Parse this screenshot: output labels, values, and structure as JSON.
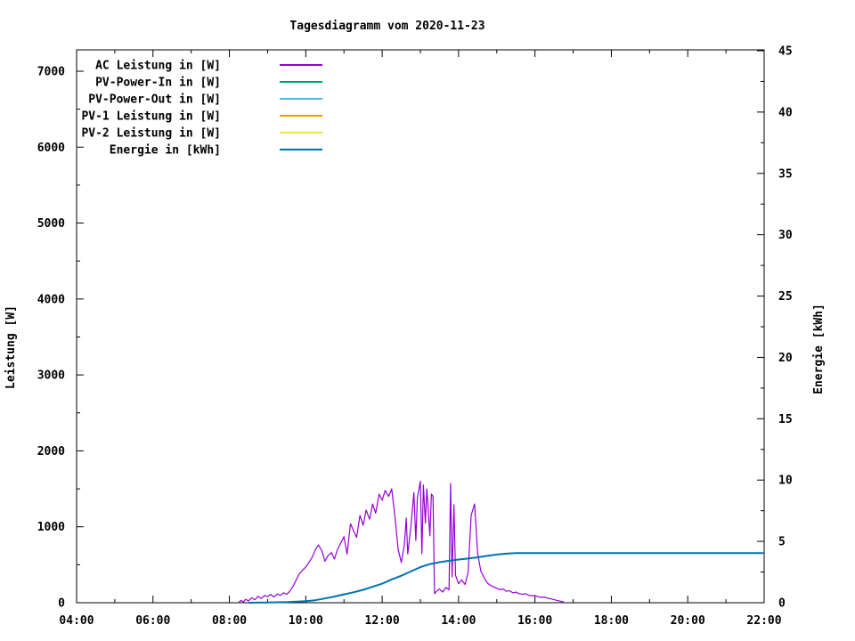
{
  "chart_data": {
    "type": "line",
    "title": "Tagesdiagramm vom 2020-11-23",
    "ylabel": "Leistung [W]",
    "y2label": "Energie [kWh]",
    "background_color": "#ffffff",
    "border_color": "#000000",
    "text_color": "#000000",
    "grid": false,
    "legend_position": "top-left-inside",
    "x_axis": {
      "min_hour": 4,
      "max_hour": 22,
      "major_step_hours": 2,
      "minor_step_hours": 1,
      "tick_hours": [
        4,
        6,
        8,
        10,
        12,
        14,
        16,
        18,
        20,
        22
      ],
      "tick_labels": [
        "04:00",
        "06:00",
        "08:00",
        "10:00",
        "12:00",
        "14:00",
        "16:00",
        "18:00",
        "20:00",
        "22:00"
      ]
    },
    "y_axis": {
      "label": "Leistung [W]",
      "min": 0,
      "max": 7000,
      "major_step": 1000,
      "minor_step": 500,
      "tick_labels": [
        "0",
        "1000",
        "2000",
        "3000",
        "4000",
        "5000",
        "6000",
        "7000"
      ]
    },
    "y2_axis": {
      "label": "Energie [kWh]",
      "min": 0,
      "max": 45,
      "major_step": 5,
      "minor_step": 2.5,
      "tick_labels": [
        "0",
        "5",
        "10",
        "15",
        "20",
        "25",
        "30",
        "35",
        "40",
        "45"
      ]
    },
    "legend": [
      {
        "label": "AC Leistung in [W]",
        "color": "#9400d3"
      },
      {
        "label": "PV-Power-In in [W]",
        "color": "#009e73"
      },
      {
        "label": "PV-Power-Out in [W]",
        "color": "#56b4e9"
      },
      {
        "label": "PV-1 Leistung in [W]",
        "color": "#e69f00"
      },
      {
        "label": "PV-2 Leistung in [W]",
        "color": "#f0e442"
      },
      {
        "label": "Energie in [kWh]",
        "color": "#0072b2"
      }
    ],
    "series": [
      {
        "name": "AC Leistung in [W]",
        "key": "ac-leistung",
        "color": "#9400d3",
        "axis": "y1",
        "stroke_width": 1.2,
        "points": [
          [
            8.25,
            5
          ],
          [
            8.3,
            30
          ],
          [
            8.37,
            12
          ],
          [
            8.42,
            45
          ],
          [
            8.5,
            25
          ],
          [
            8.58,
            65
          ],
          [
            8.67,
            40
          ],
          [
            8.75,
            85
          ],
          [
            8.83,
            55
          ],
          [
            8.92,
            95
          ],
          [
            9.0,
            80
          ],
          [
            9.08,
            110
          ],
          [
            9.17,
            75
          ],
          [
            9.25,
            115
          ],
          [
            9.33,
            95
          ],
          [
            9.42,
            130
          ],
          [
            9.5,
            110
          ],
          [
            9.58,
            150
          ],
          [
            9.67,
            220
          ],
          [
            9.75,
            300
          ],
          [
            9.83,
            380
          ],
          [
            9.92,
            430
          ],
          [
            10.0,
            470
          ],
          [
            10.08,
            530
          ],
          [
            10.17,
            600
          ],
          [
            10.25,
            700
          ],
          [
            10.33,
            760
          ],
          [
            10.42,
            690
          ],
          [
            10.5,
            545
          ],
          [
            10.58,
            620
          ],
          [
            10.67,
            660
          ],
          [
            10.75,
            575
          ],
          [
            10.83,
            700
          ],
          [
            10.92,
            790
          ],
          [
            11.0,
            870
          ],
          [
            11.08,
            640
          ],
          [
            11.17,
            1040
          ],
          [
            11.25,
            950
          ],
          [
            11.33,
            860
          ],
          [
            11.42,
            1150
          ],
          [
            11.5,
            1020
          ],
          [
            11.58,
            1220
          ],
          [
            11.67,
            1100
          ],
          [
            11.75,
            1300
          ],
          [
            11.83,
            1180
          ],
          [
            11.92,
            1430
          ],
          [
            12.0,
            1350
          ],
          [
            12.08,
            1480
          ],
          [
            12.17,
            1400
          ],
          [
            12.25,
            1500
          ],
          [
            12.33,
            1150
          ],
          [
            12.42,
            700
          ],
          [
            12.5,
            530
          ],
          [
            12.58,
            760
          ],
          [
            12.63,
            1115
          ],
          [
            12.67,
            640
          ],
          [
            12.75,
            1000
          ],
          [
            12.83,
            1450
          ],
          [
            12.88,
            820
          ],
          [
            12.92,
            1380
          ],
          [
            13.0,
            1600
          ],
          [
            13.04,
            645
          ],
          [
            13.08,
            1550
          ],
          [
            13.13,
            1050
          ],
          [
            13.17,
            1500
          ],
          [
            13.25,
            880
          ],
          [
            13.29,
            1430
          ],
          [
            13.33,
            1400
          ],
          [
            13.37,
            120
          ],
          [
            13.42,
            150
          ],
          [
            13.5,
            180
          ],
          [
            13.58,
            140
          ],
          [
            13.67,
            200
          ],
          [
            13.75,
            170
          ],
          [
            13.79,
            1570
          ],
          [
            13.83,
            340
          ],
          [
            13.88,
            1290
          ],
          [
            13.92,
            360
          ],
          [
            14.0,
            250
          ],
          [
            14.08,
            300
          ],
          [
            14.17,
            240
          ],
          [
            14.25,
            400
          ],
          [
            14.33,
            1150
          ],
          [
            14.42,
            1300
          ],
          [
            14.5,
            650
          ],
          [
            14.58,
            420
          ],
          [
            14.67,
            330
          ],
          [
            14.75,
            260
          ],
          [
            14.83,
            230
          ],
          [
            14.92,
            210
          ],
          [
            15.0,
            190
          ],
          [
            15.08,
            170
          ],
          [
            15.17,
            180
          ],
          [
            15.25,
            150
          ],
          [
            15.33,
            160
          ],
          [
            15.42,
            130
          ],
          [
            15.5,
            140
          ],
          [
            15.58,
            120
          ],
          [
            15.67,
            110
          ],
          [
            15.75,
            120
          ],
          [
            15.83,
            100
          ],
          [
            15.92,
            90
          ],
          [
            16.0,
            95
          ],
          [
            16.08,
            80
          ],
          [
            16.17,
            70
          ],
          [
            16.25,
            75
          ],
          [
            16.33,
            60
          ],
          [
            16.42,
            50
          ],
          [
            16.5,
            40
          ],
          [
            16.58,
            30
          ],
          [
            16.67,
            20
          ],
          [
            16.75,
            10
          ]
        ]
      },
      {
        "name": "PV-Power-In in [W]",
        "key": "pv-power-in",
        "color": "#009e73",
        "axis": "y1",
        "stroke_width": 1.2,
        "points": []
      },
      {
        "name": "PV-Power-Out in [W]",
        "key": "pv-power-out",
        "color": "#56b4e9",
        "axis": "y1",
        "stroke_width": 1.2,
        "points": []
      },
      {
        "name": "PV-1 Leistung in [W]",
        "key": "pv-1-leistung",
        "color": "#e69f00",
        "axis": "y1",
        "stroke_width": 1.2,
        "points": []
      },
      {
        "name": "PV-2 Leistung in [W]",
        "key": "pv-2-leistung",
        "color": "#f0e442",
        "axis": "y1",
        "stroke_width": 1.2,
        "points": []
      },
      {
        "name": "Energie in [kWh]",
        "key": "energie",
        "color": "#0072b2",
        "axis": "y2",
        "stroke_width": 2,
        "points": [
          [
            8.5,
            0
          ],
          [
            9.0,
            0.02
          ],
          [
            9.5,
            0.05
          ],
          [
            10.0,
            0.12
          ],
          [
            10.25,
            0.2
          ],
          [
            10.5,
            0.35
          ],
          [
            10.75,
            0.5
          ],
          [
            11.0,
            0.68
          ],
          [
            11.25,
            0.85
          ],
          [
            11.5,
            1.05
          ],
          [
            11.75,
            1.3
          ],
          [
            12.0,
            1.55
          ],
          [
            12.25,
            1.9
          ],
          [
            12.5,
            2.2
          ],
          [
            12.75,
            2.55
          ],
          [
            13.0,
            2.9
          ],
          [
            13.25,
            3.15
          ],
          [
            13.5,
            3.3
          ],
          [
            13.75,
            3.42
          ],
          [
            14.0,
            3.52
          ],
          [
            14.25,
            3.6
          ],
          [
            14.5,
            3.7
          ],
          [
            14.75,
            3.82
          ],
          [
            15.0,
            3.93
          ],
          [
            15.25,
            4.0
          ],
          [
            15.5,
            4.05
          ],
          [
            16.0,
            4.05
          ],
          [
            17.0,
            4.05
          ],
          [
            18.0,
            4.05
          ],
          [
            19.0,
            4.05
          ],
          [
            20.0,
            4.05
          ],
          [
            21.0,
            4.05
          ],
          [
            22.0,
            4.05
          ]
        ]
      }
    ]
  }
}
